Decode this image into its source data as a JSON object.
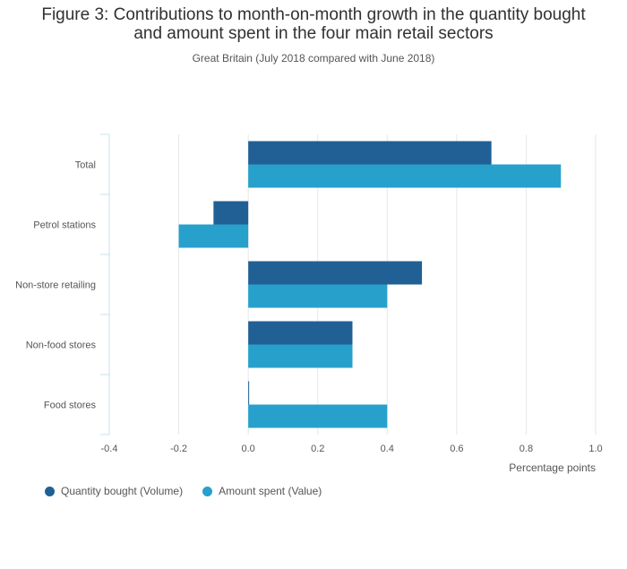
{
  "chart_data": {
    "type": "bar",
    "orientation": "horizontal",
    "title_lines": [
      "Figure 3: Contributions to month-on-month growth in the quantity bought",
      "and amount spent in the four main retail sectors"
    ],
    "subtitle": "Great Britain (July 2018 compared with June 2018)",
    "categories": [
      "Total",
      "Petrol stations",
      "Non-store retailing",
      "Non-food stores",
      "Food stores"
    ],
    "series": [
      {
        "name": "Quantity bought (Volume)",
        "color": "#206095",
        "values": [
          0.7,
          -0.1,
          0.5,
          0.3,
          0.0
        ]
      },
      {
        "name": "Amount spent (Value)",
        "color": "#27a0cc",
        "values": [
          0.9,
          -0.2,
          0.4,
          0.3,
          0.4
        ]
      }
    ],
    "xlabel": "Percentage points",
    "xlim": [
      -0.4,
      1.0
    ],
    "xticks": [
      "-0.4",
      "-0.2",
      "0.0",
      "0.2",
      "0.4",
      "0.6",
      "0.8",
      "1.0"
    ],
    "grid": true,
    "legend_position": "bottom-left"
  }
}
